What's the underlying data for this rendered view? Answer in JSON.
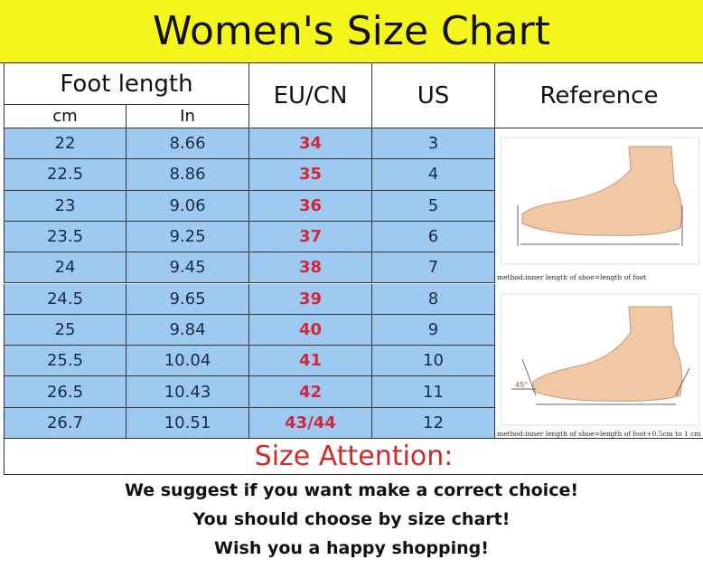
{
  "title": "Women's Size Chart",
  "headers": {
    "foot_length": "Foot length",
    "cm": "cm",
    "in": "In",
    "eu": "EU/CN",
    "us": "US",
    "reference": "Reference"
  },
  "rows": [
    {
      "cm": "22",
      "in": "8.66",
      "eu": "34",
      "us": "3"
    },
    {
      "cm": "22.5",
      "in": "8.86",
      "eu": "35",
      "us": "4"
    },
    {
      "cm": "23",
      "in": "9.06",
      "eu": "36",
      "us": "5"
    },
    {
      "cm": "23.5",
      "in": "9.25",
      "eu": "37",
      "us": "6"
    },
    {
      "cm": "24",
      "in": "9.45",
      "eu": "38",
      "us": "7"
    },
    {
      "cm": "24.5",
      "in": "9.65",
      "eu": "39",
      "us": "8"
    },
    {
      "cm": "25",
      "in": "9.84",
      "eu": "40",
      "us": "9"
    },
    {
      "cm": "25.5",
      "in": "10.04",
      "eu": "41",
      "us": "10"
    },
    {
      "cm": "26.5",
      "in": "10.43",
      "eu": "42",
      "us": "11"
    },
    {
      "cm": "26.7",
      "in": "10.51",
      "eu": "43/44",
      "us": "12"
    }
  ],
  "reference": {
    "caption1": "method:inner length of shoe=length of foot",
    "caption2": "method:inner length of shoe=length of foot+0.5cm to 1 cm",
    "angle_label": "45°"
  },
  "attention": {
    "title": "Size Attention:",
    "lines": [
      "We suggest if you want make a correct choice!",
      "You should choose by size chart!",
      "Wish you a happy shopping!"
    ]
  },
  "colors": {
    "title_bg": "#f5f51e",
    "row_bg": "#9ec9f1",
    "eu_text": "#d0283a",
    "attention_text": "#cc2a2a"
  }
}
